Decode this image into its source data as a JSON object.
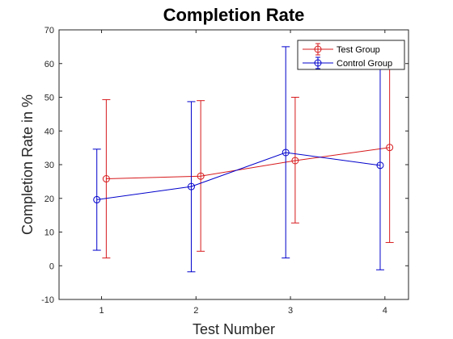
{
  "chart_data": {
    "type": "line",
    "title": "Completion Rate",
    "xlabel": "Test Number",
    "ylabel": "Completion Rate in %",
    "xlim": [
      0.55,
      4.25
    ],
    "ylim": [
      -10,
      70
    ],
    "xticks": [
      1,
      2,
      3,
      4
    ],
    "yticks": [
      -10,
      0,
      10,
      20,
      30,
      40,
      50,
      60,
      70
    ],
    "legend_position": "top-right",
    "series": [
      {
        "name": "Test Group",
        "color": "#d7191c",
        "x": [
          1.05,
          2.05,
          3.05,
          4.05
        ],
        "y": [
          25.8,
          26.6,
          31.2,
          35.1
        ],
        "err_low": [
          2.3,
          4.3,
          12.7,
          6.9
        ],
        "err_high": [
          49.3,
          49.0,
          50.0,
          62.0
        ]
      },
      {
        "name": "Control Group",
        "color": "#0000cc",
        "x": [
          0.95,
          1.95,
          2.95,
          3.95
        ],
        "y": [
          19.6,
          23.5,
          33.6,
          29.8
        ],
        "err_low": [
          4.6,
          -1.8,
          2.3,
          -1.2
        ],
        "err_high": [
          34.6,
          48.7,
          65.0,
          61.0
        ]
      }
    ]
  }
}
